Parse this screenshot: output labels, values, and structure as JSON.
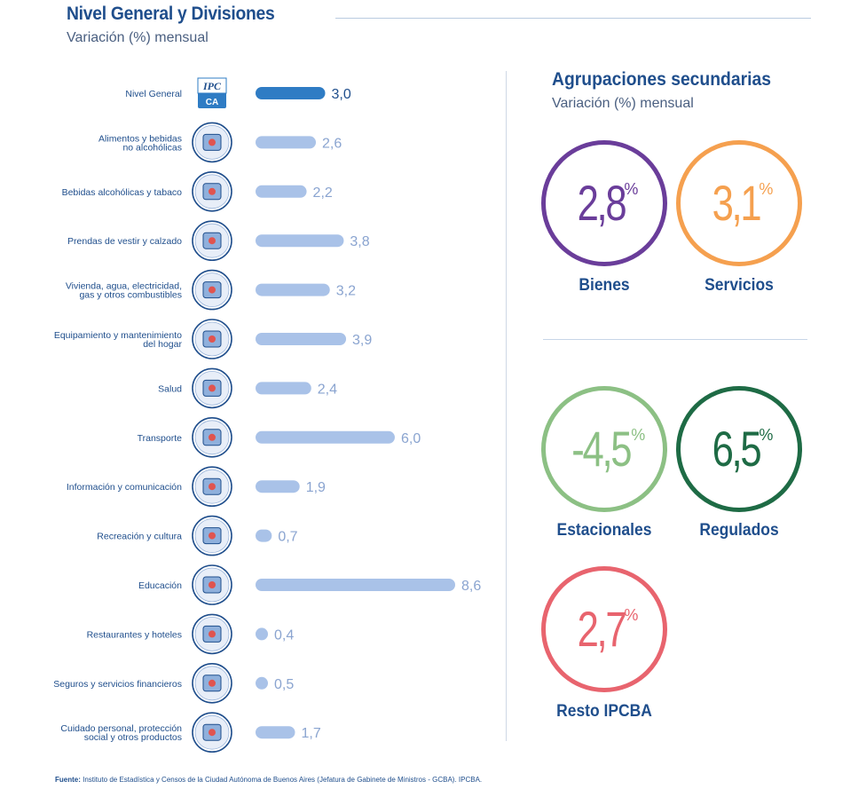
{
  "header": {
    "title": "Nivel General y Divisiones",
    "subtitle": "Variación (%) mensual"
  },
  "colors": {
    "general_bar": "#2f7cc4",
    "division_bar": "#a9c2e8",
    "value_label": "#8aa4d0",
    "value_label_general": "#1f4e8c",
    "category_label": "#1f4e8c"
  },
  "chart_data": {
    "type": "bar",
    "orientation": "horizontal",
    "categories": [
      [
        "Nivel General"
      ],
      [
        "Alimentos y bebidas",
        "no alcohólicas"
      ],
      [
        "Bebidas alcohólicas y tabaco"
      ],
      [
        "Prendas de vestir y calzado"
      ],
      [
        "Vivienda, agua, electricidad,",
        "gas y otros combustibles"
      ],
      [
        "Equipamiento y mantenimiento",
        "del hogar"
      ],
      [
        "Salud"
      ],
      [
        "Transporte"
      ],
      [
        "Información y comunicación"
      ],
      [
        "Recreación y cultura"
      ],
      [
        "Educación"
      ],
      [
        "Restaurantes y hoteles"
      ],
      [
        "Seguros y servicios financieros"
      ],
      [
        "Cuidado personal, protección",
        "social y otros productos"
      ]
    ],
    "values": [
      3.0,
      2.6,
      2.2,
      3.8,
      3.2,
      3.9,
      2.4,
      6.0,
      1.9,
      0.7,
      8.6,
      0.4,
      0.5,
      1.7
    ],
    "value_labels": [
      "3,0",
      "2,6",
      "2,2",
      "3,8",
      "3,2",
      "3,9",
      "2,4",
      "6,0",
      "1,9",
      "0,7",
      "8,6",
      "0,4",
      "0,5",
      "1,7"
    ],
    "icons": [
      "ipc-logo-icon",
      "food-icon",
      "wine-bottle-icon",
      "clothing-icon",
      "house-icon",
      "washing-machine-icon",
      "doctor-icon",
      "plane-car-icon",
      "laptop-phone-icon",
      "popcorn-masks-icon",
      "school-building-icon",
      "service-bell-icon",
      "bank-icon",
      "personal-care-icon"
    ],
    "icon_text": "IPC\nCA",
    "highlight_index": 0,
    "xlim": [
      0,
      8.6
    ]
  },
  "secondary": {
    "title": "Agrupaciones secundarias",
    "subtitle": "Variación (%) mensual",
    "percent_sign": "%",
    "items": [
      {
        "label": "Bienes",
        "value": "2,8",
        "color": "#6a3d9a"
      },
      {
        "label": "Servicios",
        "value": "3,1",
        "color": "#f5a04f"
      },
      {
        "label": "Estacionales",
        "value": "-4,5",
        "color": "#8cc084"
      },
      {
        "label": "Regulados",
        "value": "6,5",
        "color": "#1e6b45"
      },
      {
        "label": "Resto IPCBA",
        "value": "2,7",
        "color": "#e8646e"
      }
    ]
  },
  "footnote": {
    "label": "Fuente:",
    "text": " Instituto de Estadística y Censos de la Ciudad Autónoma de Buenos Aires (Jefatura de Gabinete de Ministros - GCBA). IPCBA."
  }
}
